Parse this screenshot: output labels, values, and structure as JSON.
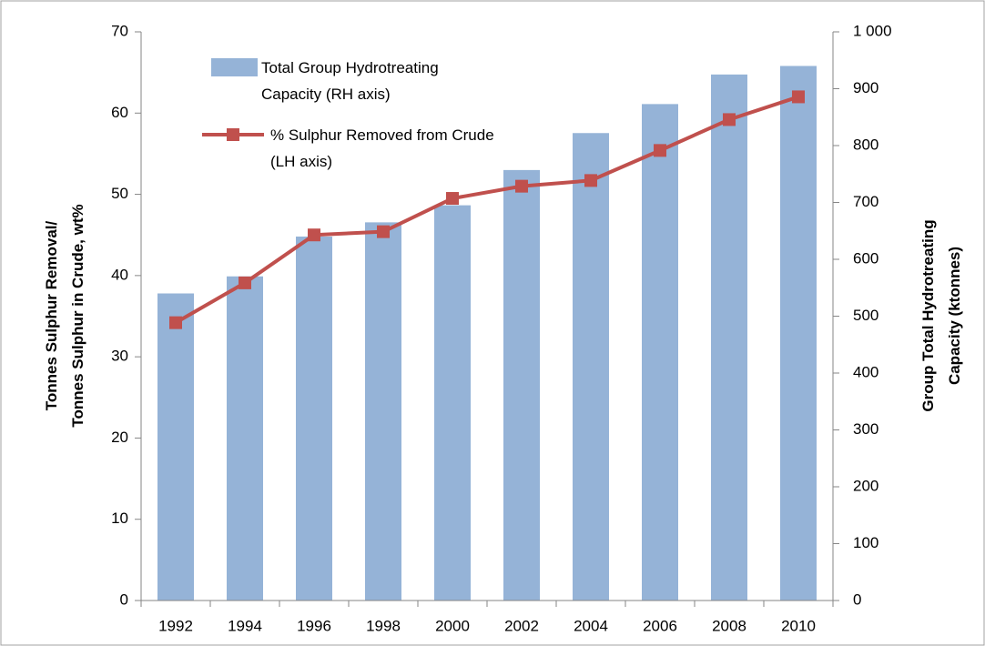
{
  "chart_data": {
    "type": "bar_line",
    "categories": [
      "1992",
      "1994",
      "1996",
      "1998",
      "2000",
      "2002",
      "2004",
      "2006",
      "2008",
      "2010"
    ],
    "series": [
      {
        "name": "Total Group Hydrotreating Capacity (RH axis)",
        "type": "bar",
        "axis": "y2",
        "color": "#95b3d7",
        "values": [
          540,
          570,
          640,
          665,
          695,
          757,
          822,
          873,
          925,
          940
        ]
      },
      {
        "name": "% Sulphur Removed from Crude (LH axis)",
        "type": "line",
        "color": "#c0504d",
        "values": [
          34.2,
          39.1,
          45.0,
          45.4,
          49.5,
          51.0,
          51.7,
          55.4,
          59.2,
          62.0
        ]
      }
    ],
    "y_label": [
      "Tonnes Sulphur Removal/",
      "Tonnes Sulphur in Crude, wt%"
    ],
    "y2_label": [
      "Group Total Hydrotreating",
      "Capacity (ktonnes)"
    ],
    "ylim": [
      0,
      70
    ],
    "yticks": [
      0,
      10,
      20,
      30,
      40,
      50,
      60,
      70
    ],
    "y2lim": [
      0,
      1000
    ],
    "y2ticks": [
      0,
      100,
      200,
      300,
      400,
      500,
      600,
      700,
      800,
      900,
      {
        "value": 1000,
        "label": "1 000"
      }
    ],
    "grid": false
  }
}
